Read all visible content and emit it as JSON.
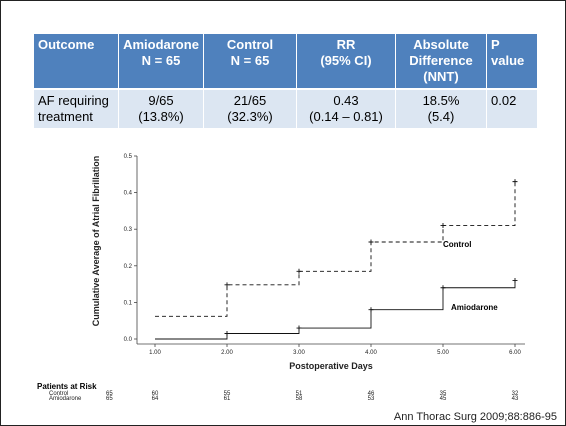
{
  "table": {
    "headers": [
      [
        "Outcome"
      ],
      [
        "Amiodarone",
        "N = 65"
      ],
      [
        "Control",
        "N = 65"
      ],
      [
        "RR",
        "(95% CI)"
      ],
      [
        "Absolute",
        "Difference",
        "(NNT)"
      ],
      [
        "P value"
      ]
    ],
    "row": [
      [
        "AF requiring",
        "treatment"
      ],
      [
        "9/65",
        "(13.8%)"
      ],
      [
        "21/65",
        "(32.3%)"
      ],
      [
        "0.43",
        "(0.14 – 0.81)"
      ],
      [
        "18.5%",
        "(5.4)"
      ],
      [
        "0.02"
      ]
    ]
  },
  "chart_data": {
    "type": "line",
    "step": true,
    "xlabel": "Postoperative Days",
    "ylabel": "Cumulative Average of Atrial Fibrillation",
    "xlim": [
      1,
      6
    ],
    "ylim": [
      0,
      0.5
    ],
    "x_ticks": [
      "1.00",
      "2.00",
      "3.00",
      "4.00",
      "5.00",
      "6.00"
    ],
    "y_ticks": [
      "0.0",
      "0.1",
      "0.2",
      "0.3",
      "0.4",
      "0.5"
    ],
    "series": [
      {
        "name": "Control",
        "style": "dashed",
        "x": [
          1,
          2,
          3,
          4,
          5,
          6
        ],
        "y": [
          0.062,
          0.148,
          0.185,
          0.265,
          0.31,
          0.43
        ]
      },
      {
        "name": "Amiodarone",
        "style": "solid",
        "x": [
          1,
          2,
          3,
          4,
          5,
          6
        ],
        "y": [
          0.0,
          0.015,
          0.03,
          0.08,
          0.14,
          0.16
        ]
      }
    ],
    "patients_at_risk": {
      "title": "Patients at Risk",
      "rows": [
        {
          "label": "Control",
          "values": [
            "65",
            "60",
            "55",
            "51",
            "46",
            "35",
            "32"
          ]
        },
        {
          "label": "Amiodarone",
          "values": [
            "65",
            "64",
            "61",
            "58",
            "53",
            "45",
            "43"
          ]
        }
      ]
    }
  },
  "citation": "Ann Thorac Surg 2009;88:886-95",
  "colors": {
    "header_bg": "#4f81bd",
    "row_bg": "#dce6f2"
  }
}
